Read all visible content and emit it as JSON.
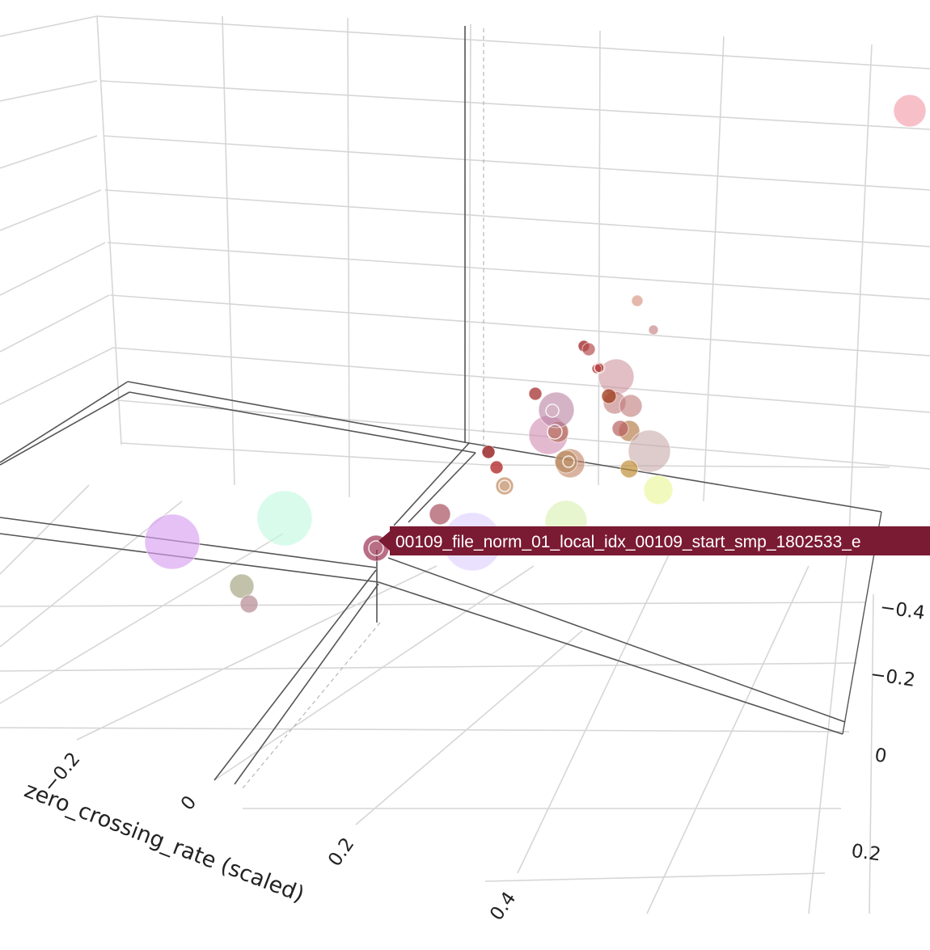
{
  "chart_data": {
    "type": "scatter3d",
    "x_axis": {
      "title": "zero_crossing_rate (scaled)",
      "ticks": [
        "−0.2",
        "0",
        "0.2",
        "0.4"
      ]
    },
    "z_axis": {
      "ticks": [
        "−0.4",
        "−0.2",
        "0",
        "0.2"
      ]
    },
    "grid": true,
    "hover": {
      "label": "00109_file_norm_01_local_idx_00109_start_smp_1802533_e",
      "color": "#7b1a33"
    },
    "points": [
      {
        "color": "#f08a9a",
        "size": 20,
        "opacity": 0.55
      },
      {
        "color": "#d89a88",
        "size": 7,
        "opacity": 0.7
      },
      {
        "color": "#c98a8a",
        "size": 6,
        "opacity": 0.7
      },
      {
        "color": "#a83a3a",
        "size": 7,
        "opacity": 0.85
      },
      {
        "color": "#b85050",
        "size": 8,
        "opacity": 0.7
      },
      {
        "color": "#c88a95",
        "size": 22,
        "opacity": 0.55
      },
      {
        "color": "#a83030",
        "size": 7,
        "opacity": 0.85
      },
      {
        "color": "#b84848",
        "size": 6,
        "opacity": 0.85
      },
      {
        "color": "#c07878",
        "size": 14,
        "opacity": 0.6
      },
      {
        "color": "#c07878",
        "size": 14,
        "opacity": 0.6
      },
      {
        "color": "#b88050",
        "size": 13,
        "opacity": 0.7
      },
      {
        "color": "#b86060",
        "size": 10,
        "opacity": 0.7
      },
      {
        "color": "#c8a8a8",
        "size": 26,
        "opacity": 0.6
      },
      {
        "color": "#c0903a",
        "size": 11,
        "opacity": 0.7
      },
      {
        "color": "#c08060",
        "size": 18,
        "opacity": 0.6
      },
      {
        "color": "#a04020",
        "size": 9,
        "opacity": 0.8
      },
      {
        "color": "#ecf6a0",
        "size": 18,
        "opacity": 0.7
      },
      {
        "color": "#d08ab0",
        "size": 24,
        "opacity": 0.6
      },
      {
        "color": "#b87060",
        "size": 13,
        "opacity": 0.75
      },
      {
        "color": "#9a2828",
        "size": 8,
        "opacity": 0.85
      },
      {
        "color": "#b83838",
        "size": 8,
        "opacity": 0.85
      },
      {
        "color": "#c08a60",
        "size": 11,
        "opacity": 0.7
      },
      {
        "color": "#b88a60",
        "size": 14,
        "opacity": 0.7
      },
      {
        "color": "#b880a0",
        "size": 22,
        "opacity": 0.6
      },
      {
        "color": "#b04848",
        "size": 8,
        "opacity": 0.85
      },
      {
        "color": "#a85060",
        "size": 13,
        "opacity": 0.7
      },
      {
        "color": "#d8c8ff",
        "size": 36,
        "opacity": 0.55
      },
      {
        "color": "#d8f0b0",
        "size": 26,
        "opacity": 0.6
      },
      {
        "color": "#d8a0f0",
        "size": 34,
        "opacity": 0.65
      },
      {
        "color": "#c0f8e0",
        "size": 34,
        "opacity": 0.6
      },
      {
        "color": "#9a3050",
        "size": 16,
        "opacity": 0.7
      },
      {
        "color": "#a8a888",
        "size": 15,
        "opacity": 0.7
      },
      {
        "color": "#b89098",
        "size": 11,
        "opacity": 0.75
      }
    ]
  }
}
